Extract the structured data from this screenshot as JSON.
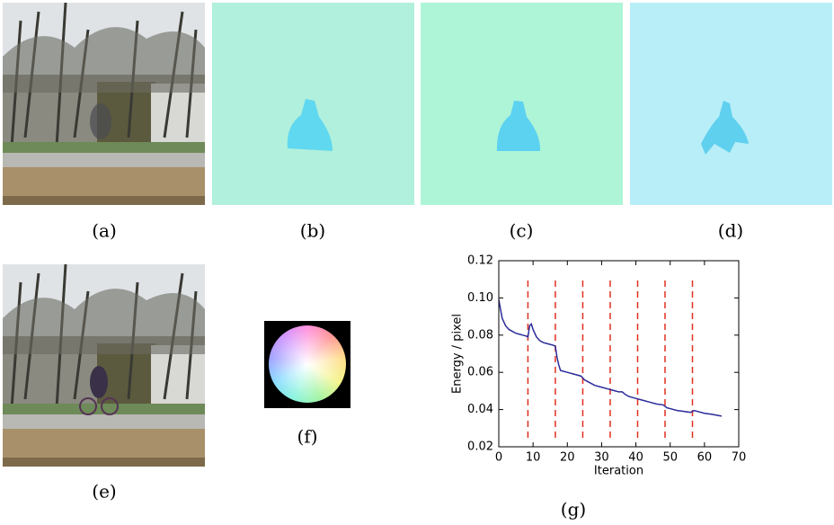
{
  "captions": [
    "(a)",
    "(b)",
    "(c)",
    "(d)",
    "(e)",
    "(f)",
    "(g)"
  ],
  "chart_data": {
    "type": "line",
    "x_label": "Iteration",
    "y_label": "Energy / pixel",
    "x": [
      0,
      1,
      2,
      3,
      4,
      5,
      6,
      7,
      8,
      8.5,
      9,
      9.5,
      10,
      11,
      12,
      13,
      14,
      15,
      16,
      16.5,
      17,
      17.5,
      18,
      20,
      22,
      24,
      25,
      26,
      28,
      30,
      32,
      33,
      34,
      35,
      36,
      37,
      38,
      40,
      42,
      44,
      46,
      48,
      49,
      50,
      52,
      54,
      56,
      57,
      58,
      60,
      62,
      65
    ],
    "values": [
      0.099,
      0.089,
      0.085,
      0.083,
      0.082,
      0.081,
      0.0805,
      0.08,
      0.0795,
      0.079,
      0.085,
      0.086,
      0.083,
      0.079,
      0.077,
      0.076,
      0.0755,
      0.075,
      0.0745,
      0.074,
      0.068,
      0.064,
      0.061,
      0.06,
      0.059,
      0.058,
      0.056,
      0.055,
      0.053,
      0.052,
      0.051,
      0.0505,
      0.05,
      0.0495,
      0.0495,
      0.048,
      0.047,
      0.046,
      0.045,
      0.044,
      0.043,
      0.0425,
      0.041,
      0.0405,
      0.0395,
      0.039,
      0.0385,
      0.0395,
      0.039,
      0.038,
      0.0375,
      0.0365
    ],
    "color": "#2b2b9b",
    "vlines": [
      8.5,
      16.5,
      24.5,
      32.5,
      40.5,
      48.5,
      56.5
    ],
    "vline_color": "#e03020",
    "xlim": [
      0,
      70
    ],
    "xticks": [
      0,
      10,
      20,
      30,
      40,
      50,
      60,
      70
    ],
    "ylim": [
      0.02,
      0.12
    ],
    "yticks": [
      0.02,
      0.04,
      0.06,
      0.08,
      {
        "value": 0.1,
        "label": "0.10"
      },
      0.12
    ]
  }
}
